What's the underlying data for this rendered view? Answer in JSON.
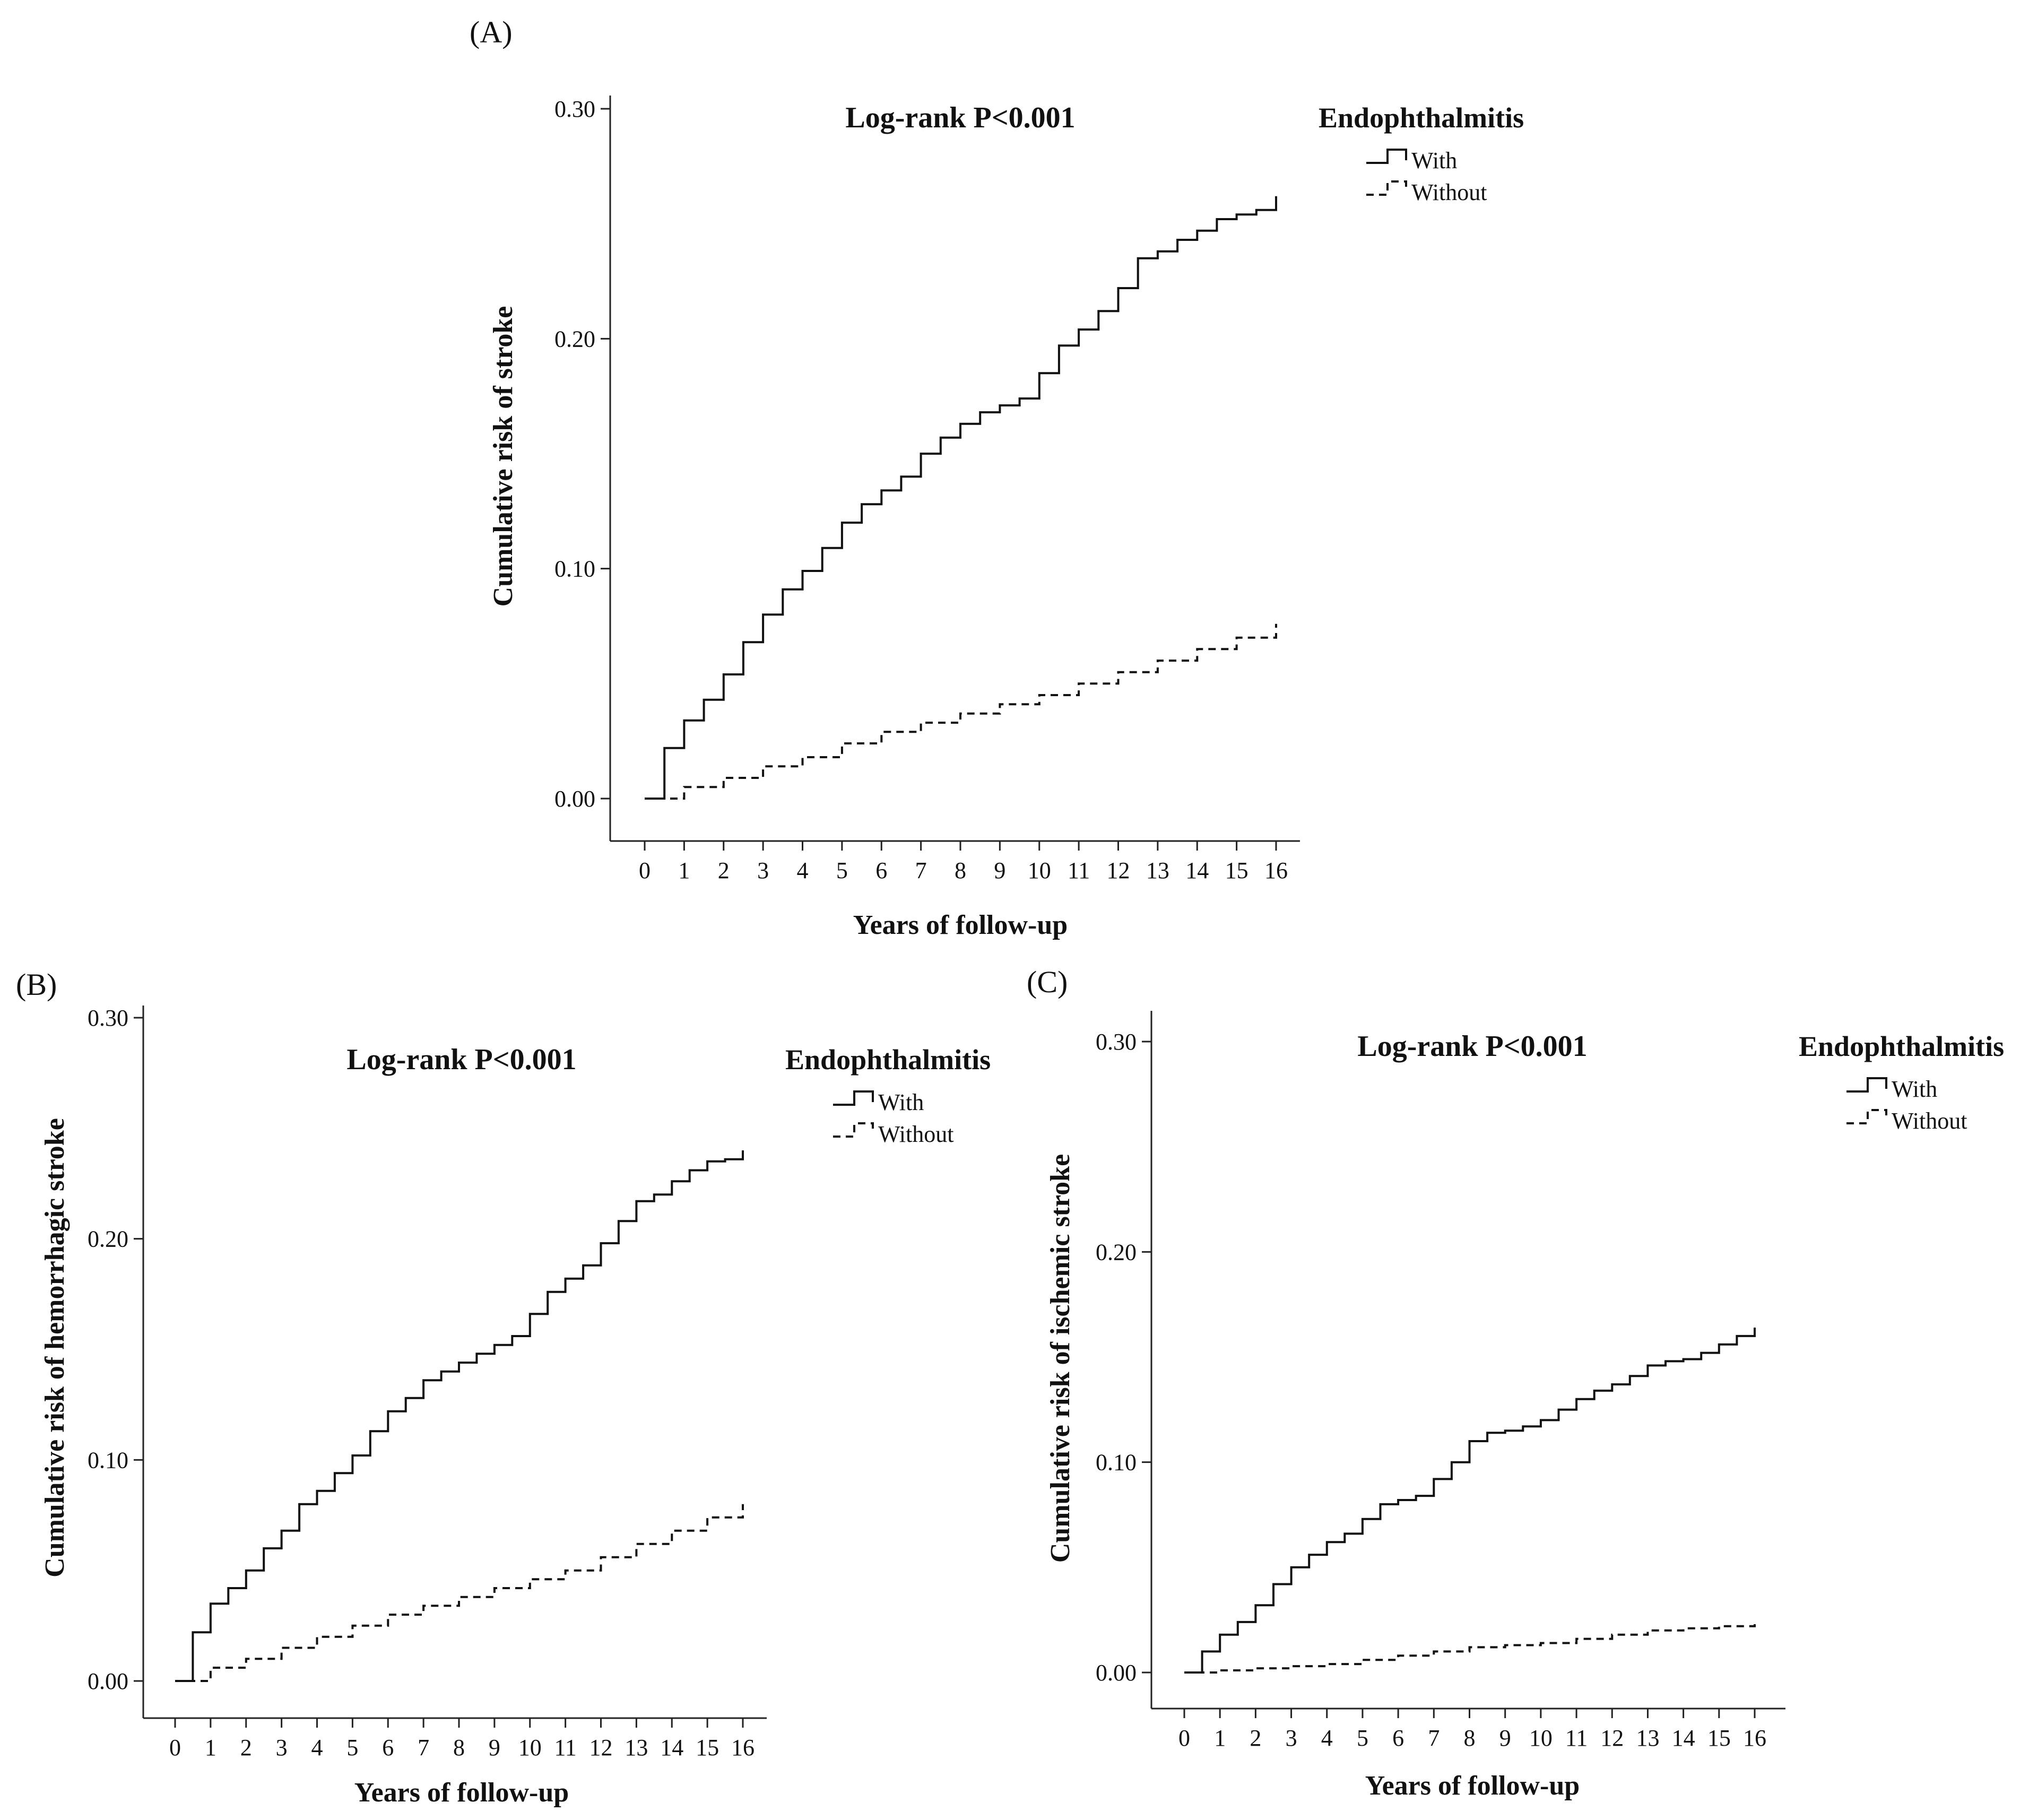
{
  "figure": {
    "description_labels": [
      "(A)",
      "(B)",
      "(C)"
    ]
  },
  "chart_data": [
    {
      "panel": "(A)",
      "type": "line",
      "title": "Log-rank P<0.001",
      "xlabel": "Years of follow-up",
      "ylabel": "Cumulative risk of stroke",
      "xlim": [
        0,
        16
      ],
      "ylim": [
        0,
        0.3
      ],
      "xticks": [
        "0",
        "1",
        "2",
        "3",
        "4",
        "5",
        "6",
        "7",
        "8",
        "9",
        "10",
        "11",
        "12",
        "13",
        "14",
        "15",
        "16"
      ],
      "yticks": [
        "0.00",
        "0.10",
        "0.20",
        "0.30"
      ],
      "legend": {
        "title": "Endophthalmitis",
        "position": "top-right outside"
      },
      "series": [
        {
          "name": "With",
          "style": "solid",
          "x": [
            0,
            0.5,
            1,
            1.5,
            2,
            2.5,
            3,
            3.5,
            4,
            4.5,
            5,
            5.5,
            6,
            6.5,
            7,
            7.5,
            8,
            8.5,
            9,
            9.5,
            10,
            10.5,
            11,
            11.5,
            12,
            12.5,
            13,
            13.5,
            14,
            14.5,
            15,
            15.5,
            16
          ],
          "y": [
            0,
            0.022,
            0.034,
            0.043,
            0.054,
            0.068,
            0.08,
            0.091,
            0.099,
            0.109,
            0.12,
            0.128,
            0.134,
            0.14,
            0.15,
            0.157,
            0.163,
            0.168,
            0.171,
            0.174,
            0.185,
            0.197,
            0.204,
            0.212,
            0.222,
            0.235,
            0.238,
            0.243,
            0.247,
            0.252,
            0.254,
            0.256,
            0.262
          ]
        },
        {
          "name": "Without",
          "style": "dashed",
          "x": [
            0,
            1,
            2,
            3,
            4,
            5,
            6,
            7,
            8,
            9,
            10,
            11,
            12,
            13,
            14,
            15,
            16
          ],
          "y": [
            0,
            0.005,
            0.009,
            0.014,
            0.018,
            0.024,
            0.029,
            0.033,
            0.037,
            0.041,
            0.045,
            0.05,
            0.055,
            0.06,
            0.065,
            0.07,
            0.076
          ]
        }
      ]
    },
    {
      "panel": "(B)",
      "type": "line",
      "title": "Log-rank P<0.001",
      "xlabel": "Years of follow-up",
      "ylabel": "Cumulative risk of hemorrhagic stroke",
      "xlim": [
        0,
        16
      ],
      "ylim": [
        0,
        0.3
      ],
      "xticks": [
        "0",
        "1",
        "2",
        "3",
        "4",
        "5",
        "6",
        "7",
        "8",
        "9",
        "10",
        "11",
        "12",
        "13",
        "14",
        "15",
        "16"
      ],
      "yticks": [
        "0.00",
        "0.10",
        "0.20",
        "0.30"
      ],
      "legend": {
        "title": "Endophthalmitis",
        "position": "top-right outside"
      },
      "series": [
        {
          "name": "With",
          "style": "solid",
          "x": [
            0,
            0.5,
            1,
            1.5,
            2,
            2.5,
            3,
            3.5,
            4,
            4.5,
            5,
            5.5,
            6,
            6.5,
            7,
            7.5,
            8,
            8.5,
            9,
            9.5,
            10,
            10.5,
            11,
            11.5,
            12,
            12.5,
            13,
            13.5,
            14,
            14.5,
            15,
            15.5,
            16
          ],
          "y": [
            0,
            0.022,
            0.035,
            0.042,
            0.05,
            0.06,
            0.068,
            0.08,
            0.086,
            0.094,
            0.102,
            0.113,
            0.122,
            0.128,
            0.136,
            0.14,
            0.144,
            0.148,
            0.152,
            0.156,
            0.166,
            0.176,
            0.182,
            0.188,
            0.198,
            0.208,
            0.217,
            0.22,
            0.226,
            0.231,
            0.235,
            0.236,
            0.24
          ]
        },
        {
          "name": "Without",
          "style": "dashed",
          "x": [
            0,
            1,
            2,
            3,
            4,
            5,
            6,
            7,
            8,
            9,
            10,
            11,
            12,
            13,
            14,
            15,
            16
          ],
          "y": [
            0,
            0.006,
            0.01,
            0.015,
            0.02,
            0.025,
            0.03,
            0.034,
            0.038,
            0.042,
            0.046,
            0.05,
            0.056,
            0.062,
            0.068,
            0.074,
            0.08
          ]
        }
      ]
    },
    {
      "panel": "(C)",
      "type": "line",
      "title": "Log-rank P<0.001",
      "xlabel": "Years of follow-up",
      "ylabel": "Cumulative risk of ischemic stroke",
      "xlim": [
        0,
        16
      ],
      "ylim": [
        0,
        0.3
      ],
      "xticks": [
        "0",
        "1",
        "2",
        "3",
        "4",
        "5",
        "6",
        "7",
        "8",
        "9",
        "10",
        "11",
        "12",
        "13",
        "14",
        "15",
        "16"
      ],
      "yticks": [
        "0.00",
        "0.10",
        "0.20",
        "0.30"
      ],
      "legend": {
        "title": "Endophthalmitis",
        "position": "top-right outside"
      },
      "series": [
        {
          "name": "With",
          "style": "solid",
          "x": [
            0,
            0.5,
            1,
            1.5,
            2,
            2.5,
            3,
            3.5,
            4,
            4.5,
            5,
            5.5,
            6,
            6.5,
            7,
            7.5,
            8,
            8.5,
            9,
            9.5,
            10,
            10.5,
            11,
            11.5,
            12,
            12.5,
            13,
            13.5,
            14,
            14.5,
            15,
            15.5,
            16
          ],
          "y": [
            0,
            0.01,
            0.018,
            0.024,
            0.032,
            0.042,
            0.05,
            0.056,
            0.062,
            0.066,
            0.073,
            0.08,
            0.082,
            0.084,
            0.092,
            0.1,
            0.11,
            0.114,
            0.115,
            0.117,
            0.12,
            0.125,
            0.13,
            0.134,
            0.137,
            0.141,
            0.146,
            0.148,
            0.149,
            0.152,
            0.156,
            0.16,
            0.164
          ]
        },
        {
          "name": "Without",
          "style": "dashed",
          "x": [
            0,
            1,
            2,
            3,
            4,
            5,
            6,
            7,
            8,
            9,
            10,
            11,
            12,
            13,
            14,
            15,
            16
          ],
          "y": [
            0,
            0.001,
            0.002,
            0.003,
            0.004,
            0.006,
            0.008,
            0.01,
            0.012,
            0.013,
            0.014,
            0.016,
            0.018,
            0.02,
            0.021,
            0.022,
            0.024
          ]
        }
      ]
    }
  ]
}
